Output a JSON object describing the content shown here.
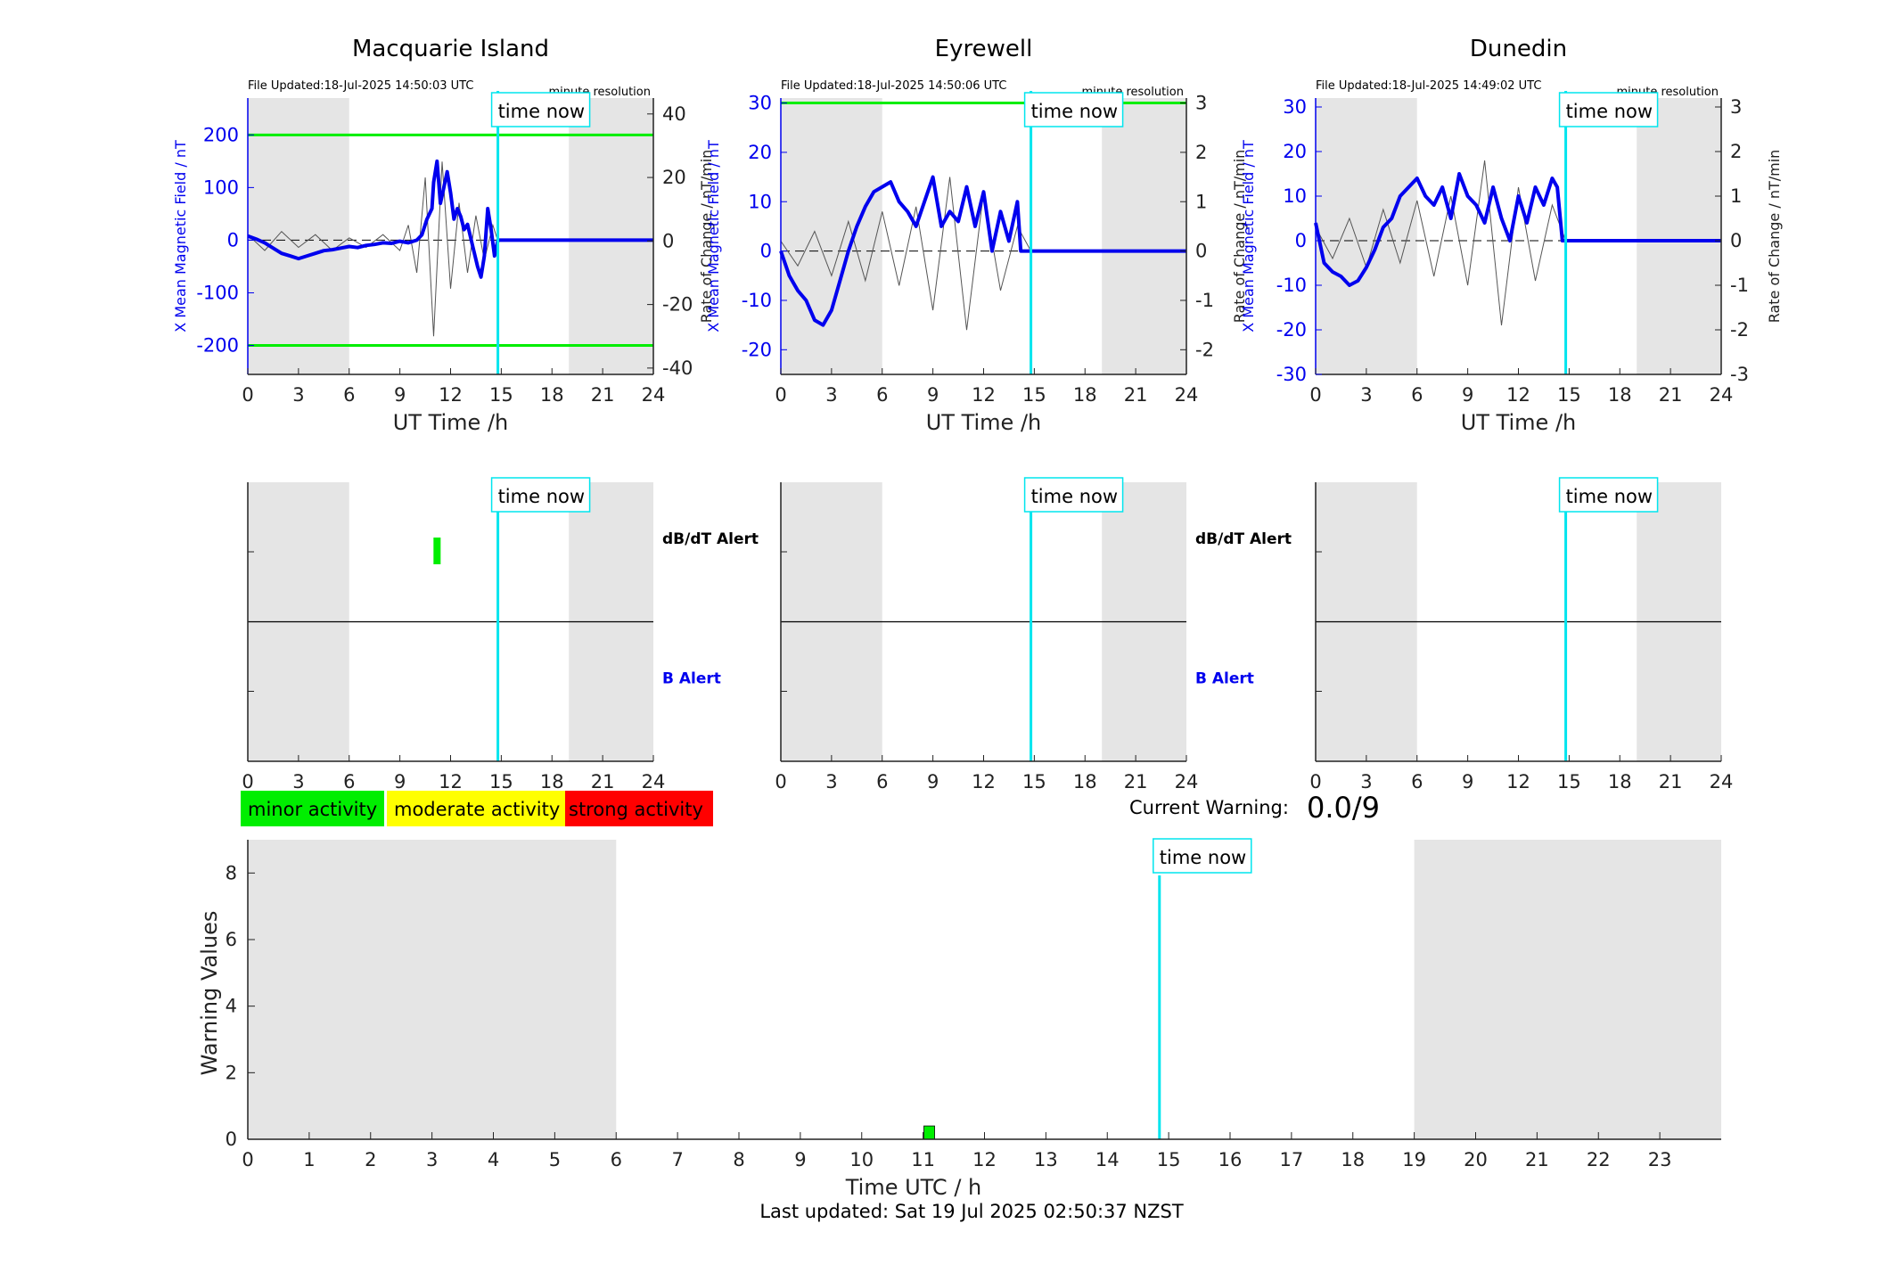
{
  "colors": {
    "field_line": "#0000ee",
    "rate_line": "#555555",
    "threshold": "#00ee00",
    "time_now": "#00e5ee",
    "night_shade": "#e5e5e5",
    "minor": "#00ee00",
    "moderate": "#ffff00",
    "strong": "#ff0000"
  },
  "stations": [
    {
      "name": "Macquarie Island",
      "file_updated": "File Updated:18-Jul-2025 14:50:03 UTC",
      "resolution": "minute resolution",
      "ylabel_left": "X Mean Magnetic Field / nT",
      "ylabel_right": "Rate of Change / nT/min",
      "xlabel": "UT Time /h",
      "left_ticks": [
        "200",
        "100",
        "0",
        "-100",
        "-200"
      ],
      "right_ticks": [
        "40",
        "20",
        "0",
        "-20",
        "-40"
      ],
      "time_now_label": "time now",
      "alert_labels": {
        "dbdt": "dB/dT Alert",
        "b": "B Alert"
      },
      "alert_markers": [
        {
          "type": "dbdt",
          "hour": 11.2
        }
      ]
    },
    {
      "name": "Eyrewell",
      "file_updated": "File Updated:18-Jul-2025 14:50:06 UTC",
      "resolution": "minute resolution",
      "ylabel_left": "X Mean Magnetic Field / nT",
      "ylabel_right": "Rate of Change / nT/min",
      "xlabel": "UT Time /h",
      "left_ticks": [
        "30",
        "20",
        "10",
        "0",
        "-10",
        "-20"
      ],
      "right_ticks": [
        "3",
        "2",
        "1",
        "0",
        "-1",
        "-2"
      ],
      "time_now_label": "time now",
      "alert_labels": {
        "dbdt": "dB/dT Alert",
        "b": "B Alert"
      },
      "alert_markers": []
    },
    {
      "name": "Dunedin",
      "file_updated": "File Updated:18-Jul-2025 14:49:02 UTC",
      "resolution": "minute resolution",
      "ylabel_left": "X Mean Magnetic Field / nT",
      "ylabel_right": "Rate of Change / nT/min",
      "xlabel": "UT Time /h",
      "left_ticks": [
        "30",
        "20",
        "10",
        "0",
        "-10",
        "-20",
        "-30"
      ],
      "right_ticks": [
        "3",
        "2",
        "1",
        "0",
        "-1",
        "-2",
        "-3"
      ],
      "time_now_label": "time now",
      "alert_labels": {
        "dbdt": "",
        "b": ""
      },
      "alert_markers": []
    }
  ],
  "legend": {
    "minor": "minor activity",
    "moderate": "moderate activity",
    "strong": "strong activity"
  },
  "current_warning": {
    "label": "Current Warning:",
    "value": "0.0/9"
  },
  "warning_chart": {
    "ylabel": "Warning Values",
    "xlabel": "Time UTC / h",
    "time_now_label": "time now"
  },
  "footer": "Last updated: Sat 19 Jul 2025 02:50:37 NZST",
  "chart_data": [
    {
      "type": "line",
      "title": "Macquarie Island",
      "xlabel": "UT Time /h",
      "ylabel": "X Mean Magnetic Field / nT",
      "ylabel_right": "Rate of Change / nT/min",
      "xlim": [
        0,
        24
      ],
      "ylim": [
        -255,
        270
      ],
      "ylim_right": [
        -42,
        45
      ],
      "xticks": [
        0,
        3,
        6,
        9,
        12,
        15,
        18,
        21,
        24
      ],
      "thresholds": [
        200,
        -200
      ],
      "night_shading_h": [
        [
          0,
          6
        ],
        [
          19,
          24
        ]
      ],
      "time_now_h": 14.8,
      "series": [
        {
          "name": "",
          "axis": "left",
          "x": [
            0,
            0.5,
            1,
            1.5,
            2,
            2.5,
            3,
            3.5,
            4,
            4.5,
            5,
            5.5,
            6,
            6.5,
            7,
            7.5,
            8,
            8.5,
            9,
            9.5,
            10,
            10.3,
            10.6,
            10.9,
            11.0,
            11.2,
            11.4,
            11.6,
            11.8,
            12.0,
            12.2,
            12.4,
            12.6,
            12.8,
            13.0,
            13.3,
            13.6,
            13.8,
            14.0,
            14.2,
            14.4,
            14.6,
            14.8,
            15,
            18,
            21,
            24
          ],
          "values": [
            8,
            2,
            -5,
            -15,
            -25,
            -30,
            -35,
            -30,
            -25,
            -20,
            -18,
            -15,
            -12,
            -14,
            -10,
            -8,
            -5,
            -6,
            -2,
            -5,
            0,
            10,
            40,
            60,
            110,
            150,
            70,
            100,
            130,
            90,
            40,
            60,
            45,
            20,
            30,
            -10,
            -50,
            -70,
            -30,
            60,
            20,
            -30,
            0,
            0,
            0,
            0,
            0
          ]
        },
        {
          "name": "",
          "axis": "right",
          "x": [
            0,
            1,
            2,
            3,
            4,
            5,
            6,
            7,
            8,
            9,
            9.5,
            10,
            10.5,
            11,
            11.5,
            12,
            12.5,
            13,
            13.5,
            14,
            14.5,
            14.8
          ],
          "values": [
            2,
            -3,
            3,
            -2,
            2,
            -3,
            1,
            -2,
            2,
            -3,
            5,
            -10,
            20,
            -30,
            25,
            -15,
            12,
            -10,
            8,
            -6,
            5,
            0
          ]
        }
      ]
    },
    {
      "type": "line",
      "title": "Eyrewell",
      "xlabel": "UT Time /h",
      "ylabel": "X Mean Magnetic Field / nT",
      "ylabel_right": "Rate of Change / nT/min",
      "xlim": [
        0,
        24
      ],
      "ylim": [
        -25,
        31
      ],
      "ylim_right": [
        -2.5,
        3.1
      ],
      "xticks": [
        0,
        3,
        6,
        9,
        12,
        15,
        18,
        21,
        24
      ],
      "thresholds": [
        30
      ],
      "night_shading_h": [
        [
          0,
          6
        ],
        [
          19,
          24
        ]
      ],
      "time_now_h": 14.8,
      "series": [
        {
          "name": "",
          "axis": "left",
          "x": [
            0,
            0.5,
            1,
            1.5,
            2,
            2.5,
            3,
            3.5,
            4,
            4.5,
            5,
            5.5,
            6,
            6.5,
            7,
            7.5,
            8,
            8.5,
            9,
            9.5,
            10,
            10.5,
            11,
            11.5,
            12,
            12.5,
            13,
            13.5,
            14,
            14.2,
            14.5,
            15,
            18,
            21,
            24
          ],
          "values": [
            0,
            -5,
            -8,
            -10,
            -14,
            -15,
            -12,
            -6,
            0,
            5,
            9,
            12,
            13,
            14,
            10,
            8,
            5,
            10,
            15,
            5,
            8,
            6,
            13,
            5,
            12,
            0,
            8,
            2,
            10,
            0,
            0,
            0,
            0,
            0,
            0
          ]
        },
        {
          "name": "",
          "axis": "right",
          "x": [
            0,
            1,
            2,
            3,
            4,
            5,
            6,
            7,
            8,
            9,
            10,
            11,
            12,
            13,
            14,
            14.8
          ],
          "values": [
            0.2,
            -0.3,
            0.4,
            -0.5,
            0.6,
            -0.6,
            0.8,
            -0.7,
            0.9,
            -1.2,
            1.5,
            -1.6,
            1.2,
            -0.8,
            0.5,
            0
          ]
        }
      ]
    },
    {
      "type": "line",
      "title": "Dunedin",
      "xlabel": "UT Time /h",
      "ylabel": "X Mean Magnetic Field / nT",
      "ylabel_right": "Rate of Change / nT/min",
      "xlim": [
        0,
        24
      ],
      "ylim": [
        -30,
        32
      ],
      "ylim_right": [
        -3,
        3.2
      ],
      "xticks": [
        0,
        3,
        6,
        9,
        12,
        15,
        18,
        21,
        24
      ],
      "thresholds": [],
      "night_shading_h": [
        [
          0,
          6
        ],
        [
          19,
          24
        ]
      ],
      "time_now_h": 14.8,
      "series": [
        {
          "name": "",
          "axis": "left",
          "x": [
            0,
            0.5,
            1,
            1.5,
            2,
            2.5,
            3,
            3.5,
            4,
            4.5,
            5,
            5.5,
            6,
            6.5,
            7,
            7.5,
            8,
            8.5,
            9,
            9.5,
            10,
            10.5,
            11,
            11.5,
            12,
            12.5,
            13,
            13.5,
            14,
            14.3,
            14.6,
            15,
            18,
            21,
            24
          ],
          "values": [
            4,
            -5,
            -7,
            -8,
            -10,
            -9,
            -6,
            -2,
            3,
            5,
            10,
            12,
            14,
            10,
            8,
            12,
            5,
            15,
            10,
            8,
            4,
            12,
            5,
            0,
            10,
            4,
            12,
            8,
            14,
            12,
            0,
            0,
            0,
            0,
            0
          ]
        },
        {
          "name": "",
          "axis": "right",
          "x": [
            0,
            1,
            2,
            3,
            4,
            5,
            6,
            7,
            8,
            9,
            10,
            11,
            12,
            13,
            14,
            14.8
          ],
          "values": [
            0.3,
            -0.4,
            0.5,
            -0.6,
            0.7,
            -0.5,
            0.9,
            -0.8,
            1.0,
            -1.0,
            1.8,
            -1.9,
            1.2,
            -0.9,
            0.8,
            0
          ]
        }
      ]
    },
    {
      "type": "bar",
      "title": "",
      "xlabel": "Time UTC / h",
      "ylabel": "Warning Values",
      "xlim": [
        0,
        24
      ],
      "ylim": [
        0,
        9
      ],
      "xticks": [
        0,
        1,
        2,
        3,
        4,
        5,
        6,
        7,
        8,
        9,
        10,
        11,
        12,
        13,
        14,
        15,
        16,
        17,
        18,
        19,
        20,
        21,
        22,
        23
      ],
      "yticks": [
        0,
        2,
        4,
        6,
        8
      ],
      "night_shading_h": [
        [
          0,
          6
        ],
        [
          19,
          24
        ]
      ],
      "time_now_h": 14.85,
      "bars": [
        {
          "x": 11.1,
          "value": 0.4,
          "level": "minor"
        }
      ]
    }
  ]
}
